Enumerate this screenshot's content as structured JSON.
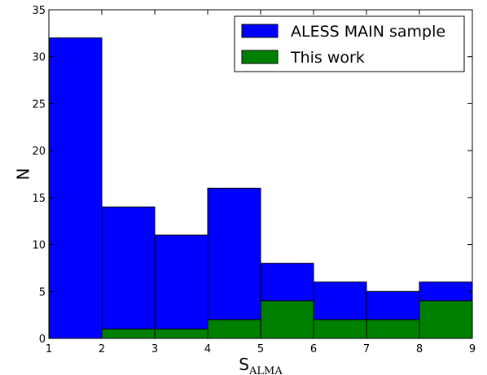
{
  "chart_data": {
    "type": "bar",
    "x_edges": [
      1,
      2,
      3,
      4,
      5,
      6,
      7,
      8,
      9
    ],
    "series": [
      {
        "name": "ALESS MAIN sample",
        "values": [
          32,
          14,
          11,
          16,
          8,
          6,
          5,
          6
        ],
        "color": "#0000ff"
      },
      {
        "name": "This work",
        "values": [
          0,
          1,
          1,
          2,
          4,
          2,
          2,
          4
        ],
        "color": "#008000"
      }
    ],
    "xlabel": "S",
    "xlabel_subscript": "ALMA",
    "ylabel": "N",
    "xlim": [
      1,
      9
    ],
    "ylim": [
      0,
      35
    ],
    "x_ticks": [
      "1",
      "2",
      "3",
      "4",
      "5",
      "6",
      "7",
      "8",
      "9"
    ],
    "y_ticks": [
      "0",
      "5",
      "10",
      "15",
      "20",
      "25",
      "30",
      "35"
    ],
    "grid": false,
    "legend_position": "top-right"
  }
}
